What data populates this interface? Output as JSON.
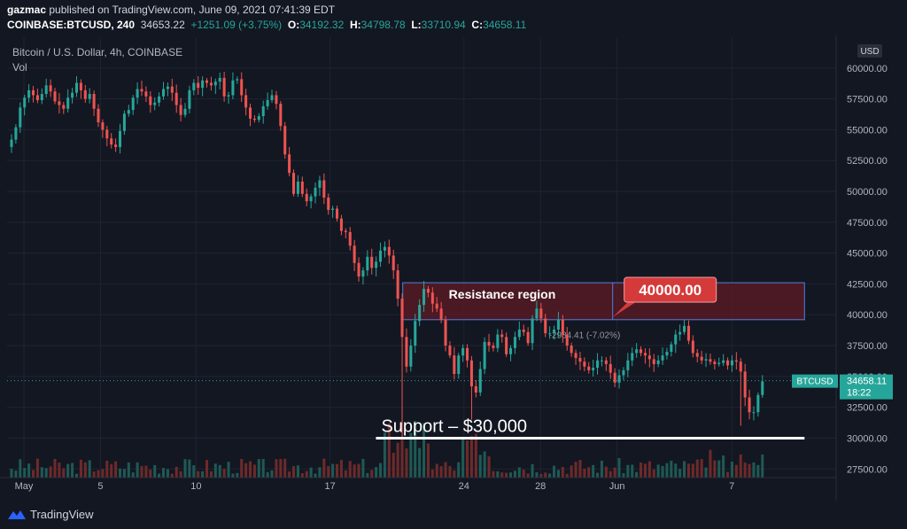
{
  "header": {
    "author": "gazmac",
    "published_text": "published on TradingView.com, June 09, 2021 07:41:39 EDT",
    "symbol": "COINBASE:BTCUSD, 240",
    "last": "34653.22",
    "change": "+1251.09 (+3.75%)",
    "o_label": "O:",
    "o": "34192.32",
    "h_label": "H:",
    "h": "34798.78",
    "l_label": "L:",
    "l": "33710.94",
    "c_label": "C:",
    "c": "34658.11"
  },
  "chart_title": "Bitcoin / U.S. Dollar, 4h, COINBASE",
  "volume_label": "Vol",
  "currency_label": "USD",
  "price_badge": {
    "symbol": "BTCUSD",
    "price": "34658.11",
    "countdown": "18:22"
  },
  "annotations": {
    "resistance_label": "Resistance region",
    "resistance_callout": "40000.00",
    "support_label": "Support – $30,000",
    "measure_text": "-2984.41 (-7.02%)"
  },
  "footer": {
    "brand": "TradingView"
  },
  "colors": {
    "background": "#131722",
    "up": "#26a69a",
    "down": "#ef5350",
    "resistance_fill": "#5b1a24",
    "resistance_border": "#4f7fe0",
    "callout": "#d43a3a",
    "support": "#ffffff"
  },
  "chart_data": {
    "type": "candlestick",
    "ylim": [
      26800,
      62500
    ],
    "yticks": [
      27500,
      30000,
      32500,
      35000,
      37500,
      40000,
      42500,
      45000,
      47500,
      50000,
      52500,
      55000,
      57500,
      60000
    ],
    "ytick_labels": [
      "27500.00",
      "30000.00",
      "32500.00",
      "35000.00",
      "37500.00",
      "40000.00",
      "42500.00",
      "45000.00",
      "47500.00",
      "50000.00",
      "52500.00",
      "55000.00",
      "57500.00",
      "60000.00"
    ],
    "xticks": [
      {
        "label": "May",
        "day": 1.0
      },
      {
        "label": "5",
        "day": 5.0
      },
      {
        "label": "10",
        "day": 10.0
      },
      {
        "label": "17",
        "day": 17.0
      },
      {
        "label": "24",
        "day": 24.0
      },
      {
        "label": "28",
        "day": 28.0
      },
      {
        "label": "Jun",
        "day": 32.0
      },
      {
        "label": "7",
        "day": 38.0
      }
    ],
    "closes": [
      54200,
      55200,
      56800,
      57600,
      58200,
      57800,
      57400,
      57900,
      58600,
      58100,
      57300,
      57000,
      56700,
      57600,
      58000,
      58800,
      58200,
      57500,
      57900,
      56700,
      55600,
      55000,
      54300,
      53800,
      53600,
      54900,
      56300,
      56600,
      57600,
      58300,
      58100,
      57700,
      57000,
      57200,
      57700,
      58300,
      58500,
      58000,
      57000,
      56200,
      56700,
      58200,
      58800,
      58400,
      59000,
      58800,
      58600,
      58900,
      59200,
      57700,
      57800,
      59000,
      59100,
      57800,
      56800,
      55900,
      55800,
      56100,
      56900,
      57400,
      57800,
      57100,
      55300,
      53000,
      51500,
      49800,
      50800,
      49800,
      49200,
      49600,
      50300,
      50900,
      49500,
      48500,
      48600,
      47800,
      46800,
      46700,
      45600,
      44200,
      43100,
      43600,
      44700,
      43800,
      44300,
      45200,
      45500,
      44800,
      43600,
      41300,
      38200,
      35800,
      37500,
      39500,
      40800,
      42100,
      41800,
      40900,
      40500,
      39600,
      37500,
      36700,
      35200,
      36700,
      37300,
      36300,
      34200,
      33700,
      35600,
      37800,
      37500,
      37300,
      38400,
      38200,
      36800,
      37300,
      38200,
      38800,
      38600,
      37700,
      39700,
      40500,
      39700,
      38500,
      38500,
      38800,
      39600,
      38400,
      37500,
      36900,
      36500,
      36200,
      35800,
      35500,
      35700,
      36300,
      36300,
      36000,
      35300,
      34500,
      35100,
      35500,
      36300,
      36900,
      37200,
      36900,
      36700,
      36400,
      36000,
      36300,
      36700,
      37000,
      37600,
      38400,
      38600,
      39100,
      37900,
      36900,
      36600,
      36300,
      36400,
      36200,
      36000,
      36100,
      36300,
      35900,
      36300,
      36200,
      35400,
      33300,
      32100,
      32100,
      33500,
      34600
    ],
    "lows_note": "single-candle wick lows at approx 30000 around May 19 and approx 31000 around Jun 8",
    "volumes_note": "volume histogram with peaks around May 19 and May 23",
    "resistance_region": {
      "from_day": 20.8,
      "to_day": 41.8,
      "low": 39600,
      "high": 42600
    },
    "support_line": {
      "from_day": 19.4,
      "to_day": 41.8,
      "value": 30000
    },
    "last_price": 34658.11
  }
}
